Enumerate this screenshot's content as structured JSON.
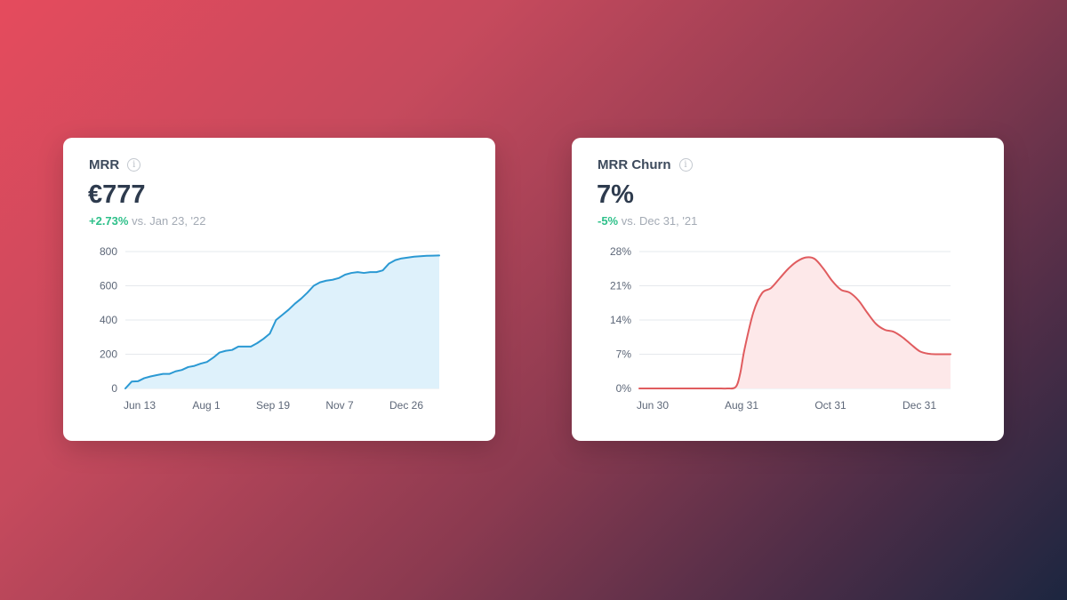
{
  "cards": [
    {
      "title": "MRR",
      "value": "€777",
      "change": "+2.73%",
      "comparison": "vs. Jan 23, '22",
      "change_color": "#2ec08a",
      "info_icon": "info-icon"
    },
    {
      "title": "MRR Churn",
      "value": "7%",
      "change": "-5%",
      "comparison": "vs. Dec 31, '21",
      "change_color": "#2ec08a",
      "info_icon": "info-icon"
    }
  ],
  "chart_data": [
    {
      "type": "area",
      "title": "MRR",
      "xlabel": "",
      "ylabel": "",
      "ylim": [
        0,
        800
      ],
      "y_ticks": [
        "0",
        "200",
        "400",
        "600",
        "800"
      ],
      "x_ticks": [
        "Jun 13",
        "Aug 1",
        "Sep 19",
        "Nov 7",
        "Dec 26"
      ],
      "grid": true,
      "line_color": "#2b99d3",
      "fill_color": "#def1fb",
      "series": [
        {
          "x": [
            0,
            1,
            2,
            3,
            4,
            5,
            6,
            7,
            8,
            9,
            10,
            11,
            12,
            13,
            14,
            15,
            16,
            17,
            18,
            19,
            20,
            21,
            22,
            23,
            24,
            25,
            26,
            27,
            28,
            29,
            30,
            31,
            32,
            33,
            34,
            35,
            36,
            37,
            38,
            39,
            40,
            41,
            42,
            43,
            44,
            45,
            46,
            47,
            48,
            49,
            50
          ],
          "values": [
            0,
            40,
            42,
            60,
            70,
            78,
            85,
            85,
            100,
            108,
            125,
            132,
            145,
            155,
            180,
            210,
            220,
            225,
            245,
            245,
            245,
            265,
            290,
            320,
            400,
            430,
            460,
            495,
            525,
            560,
            600,
            620,
            630,
            635,
            645,
            665,
            675,
            680,
            675,
            680,
            680,
            690,
            730,
            750,
            760,
            765,
            770,
            773,
            775,
            776,
            777
          ]
        }
      ]
    },
    {
      "type": "area",
      "title": "MRR Churn",
      "xlabel": "",
      "ylabel": "",
      "ylim": [
        0,
        28
      ],
      "y_ticks": [
        "0%",
        "7%",
        "14%",
        "21%",
        "28%"
      ],
      "x_ticks": [
        "Jun 30",
        "Aug 31",
        "Oct 31",
        "Dec 31"
      ],
      "grid": true,
      "line_color": "#e05c5f",
      "fill_color": "#fde8e9",
      "series": [
        {
          "x": [
            0,
            20,
            40,
            60,
            80,
            90,
            100,
            110,
            115,
            120,
            130,
            140,
            150,
            160,
            170,
            180,
            190,
            200,
            210,
            220,
            230,
            240,
            250,
            260,
            270,
            280,
            290,
            300,
            310,
            320,
            330,
            340,
            350,
            355
          ],
          "values": [
            0,
            0,
            0,
            0,
            0,
            0,
            0,
            0.3,
            3,
            8,
            15.5,
            19.5,
            20.5,
            22.5,
            24.5,
            26,
            26.8,
            26.5,
            24.5,
            22,
            20.2,
            19.6,
            18,
            15.5,
            13.2,
            12,
            11.6,
            10.5,
            9,
            7.6,
            7.1,
            7,
            7,
            7
          ]
        }
      ]
    }
  ]
}
